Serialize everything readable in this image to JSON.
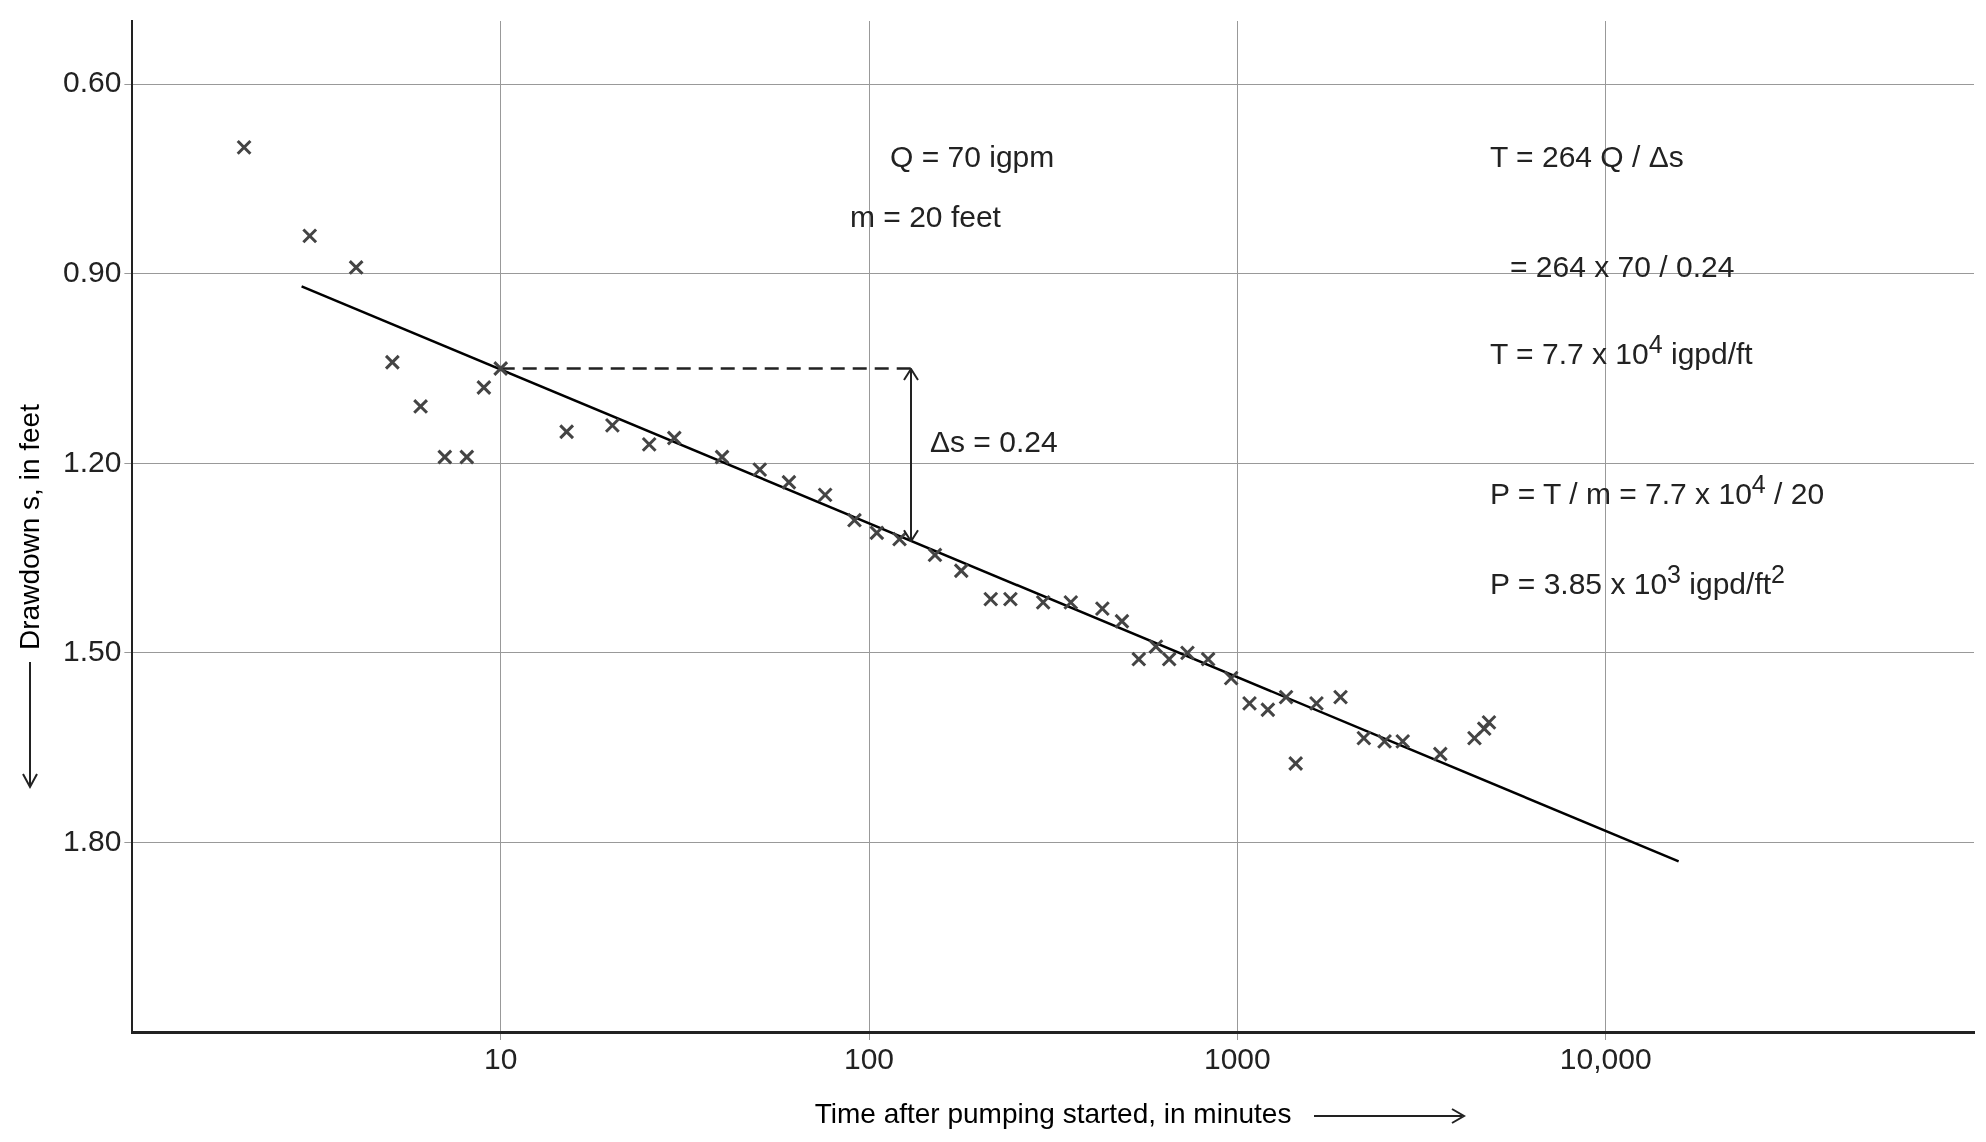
{
  "chart_data": {
    "type": "scatter",
    "xlabel": "Time after pumping started, in minutes",
    "ylabel": "Drawdown s, in feet",
    "log": "x",
    "grid": true,
    "legend": false,
    "xlim": [
      1,
      100000
    ],
    "xticks": [
      10,
      100,
      1000,
      {
        "value": 10000,
        "label": "10,000"
      }
    ],
    "ylim": [
      2.1,
      0.5
    ],
    "yticks": [
      {
        "value": 0.6,
        "label": "0.60"
      },
      {
        "value": 0.9,
        "label": "0.90"
      },
      {
        "value": 1.2,
        "label": "1.20"
      },
      {
        "value": 1.5,
        "label": "1.50"
      },
      {
        "value": 1.8,
        "label": "1.80"
      }
    ],
    "annotations": [
      "Q = 70 igpm",
      "m = 20 feet",
      "T = 264 Q / Δs",
      "= 264 x 70 / 0.24",
      "T = 7.7 x 10$^{4}$ igpd/ft",
      "P = T / m = 7.7 x 10$^{4}$ / 20",
      "P = 3.85 x 10$^{3}$ igpd/ft$^{2}$",
      "Δs = 0.24"
    ],
    "series": [
      {
        "marker": "cross",
        "color": "#444444",
        "x": [
          2.01,
          3.03,
          4.05,
          5.08,
          6.06,
          7.05,
          8.09,
          9.0,
          10,
          15.1,
          20.1,
          25.3,
          29.6,
          39.9,
          50.5,
          60.6,
          76,
          91.3,
          105,
          121,
          151,
          178,
          214,
          242,
          297,
          353,
          430,
          486,
          540,
          601,
          653,
          732,
          833,
          962,
          1079,
          1210,
          1356,
          1440,
          1640,
          1906,
          2205,
          2510,
          2812,
          3556,
          4403,
          4680,
          4820
        ],
        "values": [
          0.7,
          0.84,
          0.89,
          1.04,
          1.11,
          1.19,
          1.19,
          1.08,
          1.05,
          1.15,
          1.14,
          1.17,
          1.16,
          1.19,
          1.21,
          1.23,
          1.25,
          1.29,
          1.31,
          1.32,
          1.345,
          1.37,
          1.415,
          1.415,
          1.42,
          1.42,
          1.43,
          1.45,
          1.51,
          1.49,
          1.51,
          1.5,
          1.51,
          1.54,
          1.58,
          1.59,
          1.57,
          1.675,
          1.58,
          1.57,
          1.635,
          1.64,
          1.64,
          1.66,
          1.635,
          1.62,
          1.61
        ]
      },
      {
        "type": "line",
        "marker": "none",
        "line_style": "solid",
        "color": "#000000",
        "x": [
          2.88,
          15780
        ],
        "values": [
          0.92,
          1.83
        ]
      },
      {
        "type": "line",
        "marker": "none",
        "line_style": "dashed",
        "color": "#222222",
        "x": [
          10,
          130
        ],
        "values": [
          1.05,
          1.05
        ]
      }
    ]
  }
}
